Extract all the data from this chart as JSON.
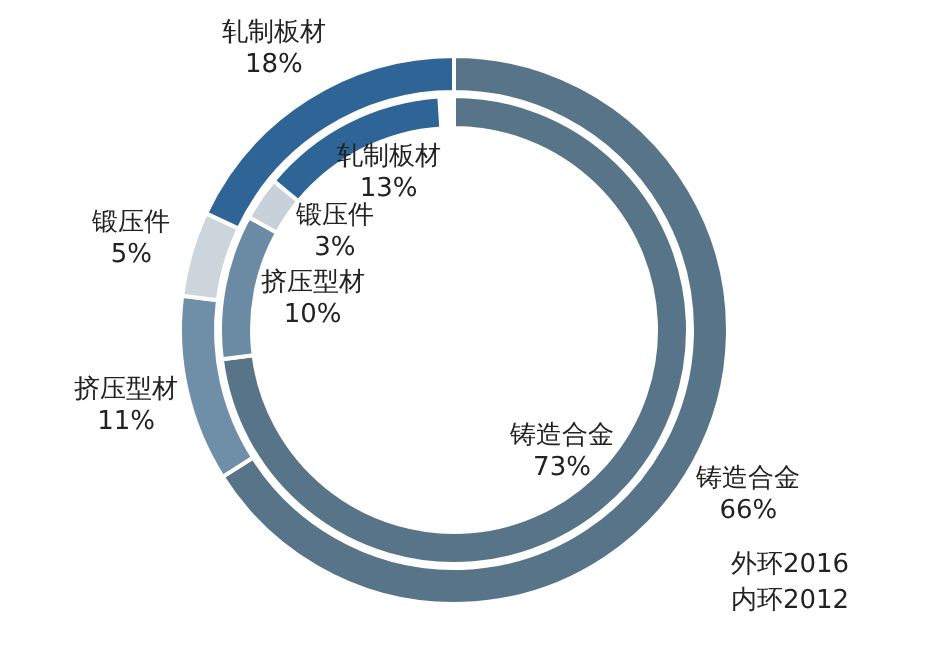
{
  "chart_data": [
    {
      "type": "donut",
      "categories": [
        "铸造合金",
        "挤压型材",
        "锻压件",
        "轧制板材"
      ],
      "values": [
        66,
        11,
        5,
        18
      ],
      "colors": [
        "#587488",
        "#6f8fa9",
        "#cdd5dc",
        "#2f6497"
      ],
      "value_labels": [
        "66%",
        "11%",
        "5%",
        "18%"
      ],
      "annotations": [
        "外环2016"
      ]
    },
    {
      "type": "donut",
      "categories": [
        "铸造合金",
        "挤压型材",
        "锻压件",
        "轧制板材"
      ],
      "values": [
        73,
        10,
        3,
        13
      ],
      "colors": [
        "#587488",
        "#6b8aa3",
        "#c8d1d9",
        "#2f6497"
      ],
      "value_labels": [
        "73%",
        "10%",
        "3%",
        "13%"
      ],
      "annotations": [
        "内环2012"
      ]
    }
  ]
}
